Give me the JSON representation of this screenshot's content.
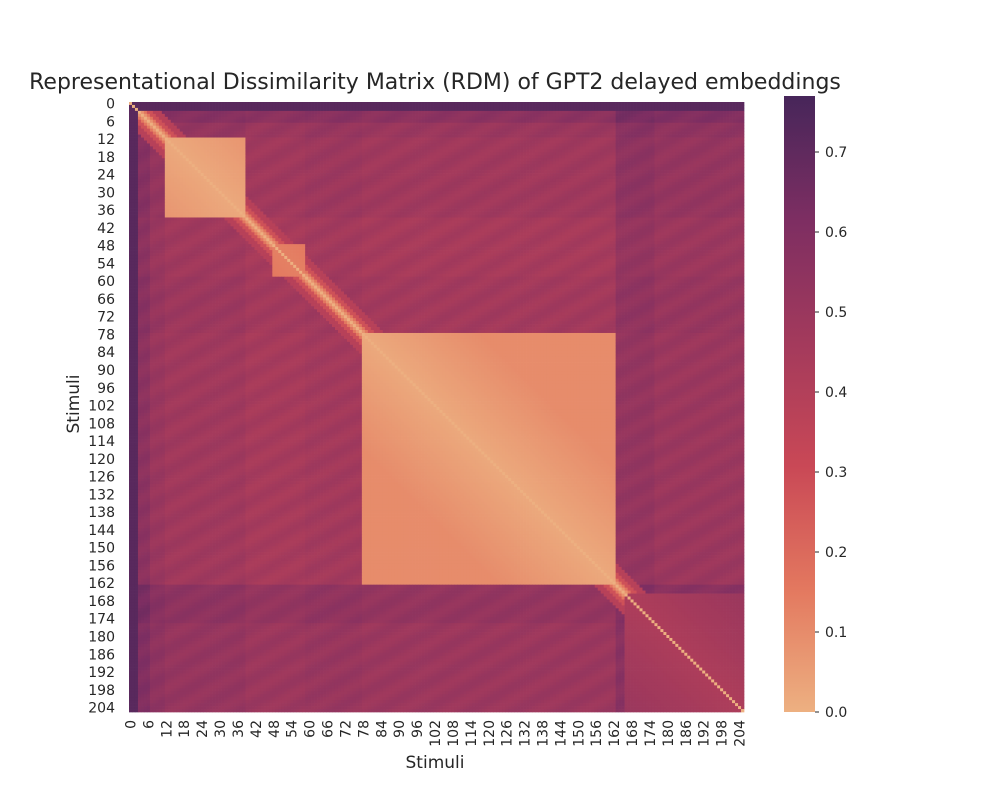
{
  "chart_data": {
    "type": "heatmap",
    "title": "Representational Dissimilarity Matrix (RDM) of GPT2 delayed embeddings",
    "xlabel": "Stimuli",
    "ylabel": "Stimuli",
    "n": 206,
    "tick_step": 6,
    "x_tick_labels": [
      "0",
      "6",
      "12",
      "18",
      "24",
      "30",
      "36",
      "42",
      "48",
      "54",
      "60",
      "66",
      "72",
      "78",
      "84",
      "90",
      "96",
      "102",
      "108",
      "114",
      "120",
      "126",
      "132",
      "138",
      "144",
      "150",
      "156",
      "162",
      "168",
      "174",
      "180",
      "186",
      "192",
      "198",
      "204"
    ],
    "y_tick_labels": [
      "0",
      "6",
      "12",
      "18",
      "24",
      "30",
      "36",
      "42",
      "48",
      "54",
      "60",
      "66",
      "72",
      "78",
      "84",
      "90",
      "96",
      "102",
      "108",
      "114",
      "120",
      "126",
      "132",
      "138",
      "144",
      "150",
      "156",
      "162",
      "168",
      "174",
      "180",
      "186",
      "192",
      "198",
      "204"
    ],
    "colorbar": {
      "min": 0.0,
      "max": 0.77,
      "tick_values": [
        0.0,
        0.1,
        0.2,
        0.3,
        0.4,
        0.5,
        0.6,
        0.7
      ],
      "tick_labels": [
        "0.0",
        "0.1",
        "0.2",
        "0.3",
        "0.4",
        "0.5",
        "0.6",
        "0.7"
      ]
    },
    "colormap_stops": [
      "#edb081",
      "#e3785f",
      "#c94856",
      "#a33a5c",
      "#7d2e62",
      "#47265a"
    ],
    "blocks": [
      {
        "start": 12,
        "end": 38,
        "within": 0.02
      },
      {
        "start": 48,
        "end": 58,
        "within": 0.13
      },
      {
        "start": 78,
        "end": 162,
        "within": 0.02
      },
      {
        "start": 166,
        "end": 205,
        "within": 0.42
      }
    ],
    "grid": false,
    "legend": "none"
  }
}
